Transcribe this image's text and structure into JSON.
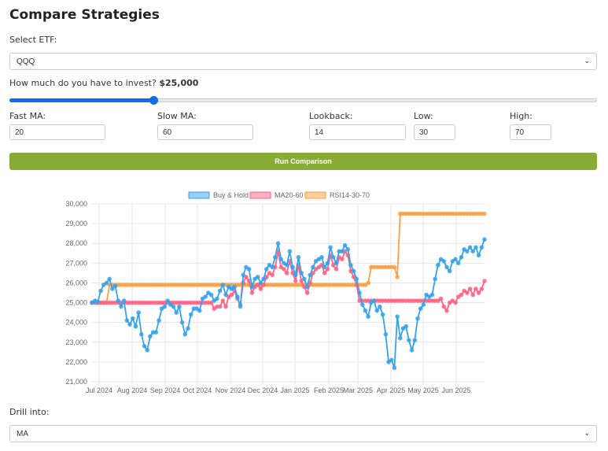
{
  "header": {
    "title": "Compare Strategies"
  },
  "etf": {
    "label": "Select ETF:",
    "value": "QQQ"
  },
  "invest": {
    "label": "How much do you have to invest?",
    "amount": "$25,000",
    "slider_percent": 24.6
  },
  "params": {
    "fast_ma": {
      "label": "Fast MA:",
      "value": "20"
    },
    "slow_ma": {
      "label": "Slow MA:",
      "value": "60"
    },
    "lookback": {
      "label": "Lookback:",
      "value": "14"
    },
    "low": {
      "label": "Low:",
      "value": "30"
    },
    "high": {
      "label": "High:",
      "value": "70"
    }
  },
  "run_button": {
    "label": "Run Comparison"
  },
  "drill": {
    "label": "Drill into:",
    "value": "MA"
  },
  "colors": {
    "buy_hold": "#36a2eb",
    "ma": "#ff6384",
    "rsi": "#ff9f40",
    "run": "#89ac37",
    "slider": "#0b6fe6"
  },
  "chart_data": {
    "type": "line",
    "title": "",
    "xlabel": "",
    "ylabel": "",
    "ylim": [
      21000,
      30000
    ],
    "yticks": [
      "30,000",
      "29,000",
      "28,000",
      "27,000",
      "26,000",
      "25,000",
      "24,000",
      "23,000",
      "22,000",
      "21,000"
    ],
    "x_tick_labels": [
      "Jul 2024",
      "Aug 2024",
      "Sep 2024",
      "Oct 2024",
      "Nov 2024",
      "Dec 2024",
      "Jan 2025",
      "Feb 2025",
      "Mar 2025",
      "Apr 2025",
      "May 2025",
      "Jun 2025"
    ],
    "legend": [
      "Buy & Hold",
      "MA20-60",
      "RSI14-30-70"
    ],
    "legend_position": "top",
    "grid": true,
    "series": [
      {
        "name": "Buy & Hold",
        "values": [
          25000,
          25100,
          25050,
          25600,
          25900,
          26000,
          26200,
          25700,
          25850,
          25100,
          24800,
          25100,
          24100,
          23900,
          24200,
          23800,
          24500,
          23400,
          22800,
          22600,
          23300,
          23500,
          23500,
          24100,
          24700,
          24800,
          25100,
          24900,
          24800,
          24500,
          24800,
          24000,
          23400,
          23700,
          24400,
          24700,
          24700,
          24600,
          25200,
          25300,
          25500,
          25400,
          25100,
          25200,
          25600,
          25900,
          25400,
          25800,
          25700,
          25800,
          25300,
          24800,
          26400,
          26800,
          26700,
          25800,
          26200,
          26300,
          26000,
          26200,
          26700,
          26900,
          26800,
          27300,
          28000,
          27200,
          27000,
          26900,
          27600,
          26800,
          26400,
          27300,
          26500,
          26200,
          25800,
          26400,
          26800,
          27100,
          27200,
          27300,
          26800,
          27000,
          27800,
          27300,
          27000,
          27600,
          27600,
          27900,
          27700,
          26900,
          26600,
          26200,
          25500,
          24900,
          24600,
          24300,
          25000,
          25100,
          24600,
          24800,
          24400,
          23400,
          22000,
          22100,
          21700,
          24300,
          23200,
          23700,
          23800,
          23100,
          22600,
          23100,
          24200,
          24700,
          24900,
          25400,
          25300,
          25400,
          26200,
          26900,
          27200,
          27100,
          26800,
          26600,
          27100,
          27200,
          27000,
          27300,
          27700,
          27600,
          27800,
          27600,
          27800,
          27400,
          27800,
          28200
        ]
      },
      {
        "name": "MA20-60",
        "values": [
          25000,
          25000,
          25000,
          25000,
          25000,
          25000,
          25000,
          25000,
          25000,
          25000,
          25000,
          25000,
          25000,
          25000,
          25000,
          25000,
          25000,
          25000,
          25000,
          25000,
          25000,
          25000,
          25000,
          25000,
          25000,
          25000,
          25000,
          25000,
          25000,
          25000,
          25000,
          25000,
          25000,
          25000,
          25000,
          25000,
          25000,
          25000,
          25000,
          25000,
          25000,
          25000,
          24700,
          24800,
          24800,
          25100,
          24800,
          25300,
          25400,
          25600,
          25200,
          24900,
          26000,
          26300,
          26100,
          25500,
          25800,
          25900,
          25700,
          25900,
          26300,
          26500,
          26400,
          26800,
          27600,
          26800,
          26700,
          26500,
          27100,
          26500,
          26100,
          26900,
          26100,
          25800,
          25500,
          26000,
          26500,
          26700,
          26800,
          26900,
          26500,
          26700,
          27400,
          26900,
          26700,
          27300,
          27200,
          27600,
          27400,
          26600,
          26300,
          25900,
          25100,
          25100,
          25100,
          25100,
          25100,
          25100,
          25100,
          25100,
          25100,
          25100,
          25100,
          25100,
          25100,
          25100,
          25100,
          25100,
          25100,
          25100,
          25100,
          25100,
          25100,
          25100,
          25100,
          25100,
          25100,
          25100,
          25100,
          25100,
          25200,
          24800,
          24600,
          25000,
          25100,
          25000,
          25300,
          25400,
          25600,
          25500,
          25700,
          25400,
          25700,
          25500,
          25700,
          26100
        ]
      },
      {
        "name": "RSI14-30-70",
        "values": [
          25000,
          25000,
          25000,
          25000,
          25000,
          25000,
          25900,
          25900,
          25900,
          25900,
          25900,
          25900,
          25900,
          25900,
          25900,
          25900,
          25900,
          25900,
          25900,
          25900,
          25900,
          25900,
          25900,
          25900,
          25900,
          25900,
          25900,
          25900,
          25900,
          25900,
          25900,
          25900,
          25900,
          25900,
          25900,
          25900,
          25900,
          25900,
          25900,
          25900,
          25900,
          25900,
          25900,
          25900,
          25900,
          25900,
          25900,
          25900,
          25900,
          25900,
          25900,
          25900,
          25900,
          25900,
          25900,
          25900,
          25900,
          25900,
          25900,
          25900,
          25900,
          25900,
          25900,
          25900,
          25900,
          25900,
          25900,
          25900,
          25900,
          25900,
          25900,
          25900,
          25900,
          25900,
          25900,
          25900,
          25900,
          25900,
          25900,
          25900,
          25900,
          25900,
          25900,
          25900,
          25900,
          25900,
          25900,
          25900,
          25900,
          25900,
          25900,
          25900,
          25900,
          25900,
          25900,
          26000,
          26800,
          26800,
          26800,
          26800,
          26800,
          26800,
          26800,
          26800,
          26800,
          26300,
          29500,
          29500,
          29500,
          29500,
          29500,
          29500,
          29500,
          29500,
          29500,
          29500,
          29500,
          29500,
          29500,
          29500,
          29500,
          29500,
          29500,
          29500,
          29500,
          29500,
          29500,
          29500,
          29500,
          29500,
          29500,
          29500,
          29500,
          29500,
          29500,
          29500
        ]
      }
    ]
  }
}
